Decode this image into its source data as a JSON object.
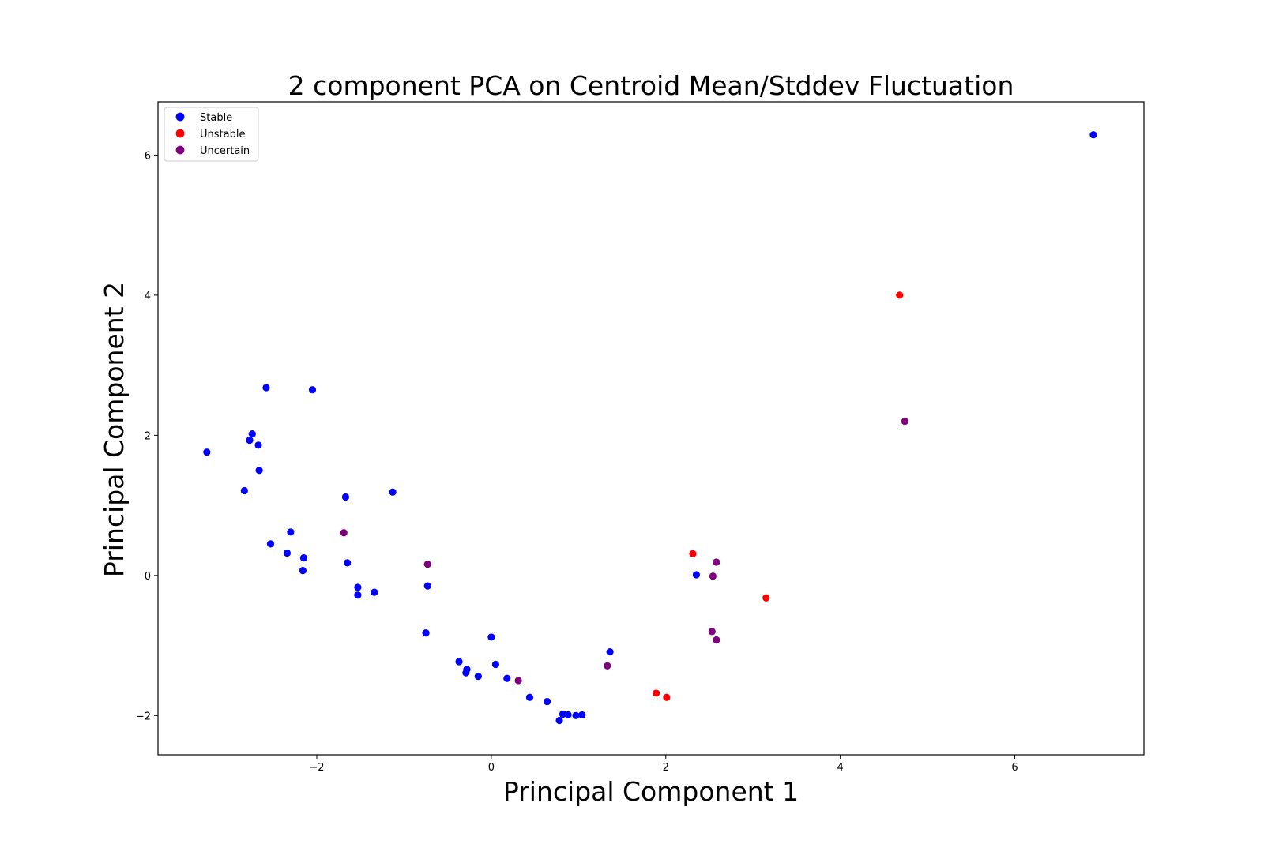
{
  "chart_data": {
    "type": "scatter",
    "title": "2 component PCA on Centroid Mean/Stddev Fluctuation",
    "xlabel": "Principal Component 1",
    "ylabel": "Principal Component 2",
    "xlim": [
      -3.82,
      7.48
    ],
    "ylim": [
      -2.56,
      6.76
    ],
    "xticks": [
      -2,
      0,
      2,
      4,
      6
    ],
    "yticks": [
      -2,
      0,
      2,
      4,
      6
    ],
    "xtick_labels": [
      "−2",
      "0",
      "2",
      "4",
      "6"
    ],
    "ytick_labels": [
      "−2",
      "0",
      "2",
      "4",
      "6"
    ],
    "grid": false,
    "legend_position": "top-left",
    "series": [
      {
        "name": "Stable",
        "color": "#0000ff",
        "points": [
          [
            -3.26,
            1.76
          ],
          [
            -2.58,
            2.68
          ],
          [
            -2.05,
            2.65
          ],
          [
            -2.74,
            2.02
          ],
          [
            -2.77,
            1.93
          ],
          [
            -2.67,
            1.86
          ],
          [
            -2.66,
            1.5
          ],
          [
            -2.83,
            1.21
          ],
          [
            -2.3,
            0.62
          ],
          [
            -2.53,
            0.45
          ],
          [
            -2.34,
            0.32
          ],
          [
            -2.15,
            0.25
          ],
          [
            -2.16,
            0.07
          ],
          [
            -1.67,
            1.12
          ],
          [
            -1.13,
            1.19
          ],
          [
            -1.65,
            0.18
          ],
          [
            -1.53,
            -0.17
          ],
          [
            -1.53,
            -0.28
          ],
          [
            -1.34,
            -0.24
          ],
          [
            -0.73,
            -0.15
          ],
          [
            -0.75,
            -0.82
          ],
          [
            0.0,
            -0.88
          ],
          [
            -0.37,
            -1.23
          ],
          [
            -0.28,
            -1.34
          ],
          [
            -0.29,
            -1.39
          ],
          [
            -0.15,
            -1.44
          ],
          [
            0.05,
            -1.27
          ],
          [
            0.18,
            -1.47
          ],
          [
            0.44,
            -1.74
          ],
          [
            0.64,
            -1.8
          ],
          [
            0.82,
            -1.98
          ],
          [
            0.88,
            -1.99
          ],
          [
            0.97,
            -2.0
          ],
          [
            1.04,
            -1.99
          ],
          [
            0.78,
            -2.07
          ],
          [
            1.36,
            -1.09
          ],
          [
            2.35,
            0.01
          ],
          [
            6.9,
            6.29
          ]
        ]
      },
      {
        "name": "Unstable",
        "color": "#ff0000",
        "points": [
          [
            4.68,
            4.0
          ],
          [
            2.31,
            0.31
          ],
          [
            3.15,
            -0.32
          ],
          [
            1.89,
            -1.68
          ],
          [
            2.01,
            -1.74
          ]
        ]
      },
      {
        "name": "Uncertain",
        "color": "#800080",
        "points": [
          [
            4.74,
            2.2
          ],
          [
            -1.69,
            0.61
          ],
          [
            -0.73,
            0.16
          ],
          [
            2.58,
            0.19
          ],
          [
            2.54,
            -0.01
          ],
          [
            2.53,
            -0.8
          ],
          [
            2.58,
            -0.92
          ],
          [
            1.33,
            -1.29
          ],
          [
            0.31,
            -1.5
          ]
        ]
      }
    ]
  }
}
